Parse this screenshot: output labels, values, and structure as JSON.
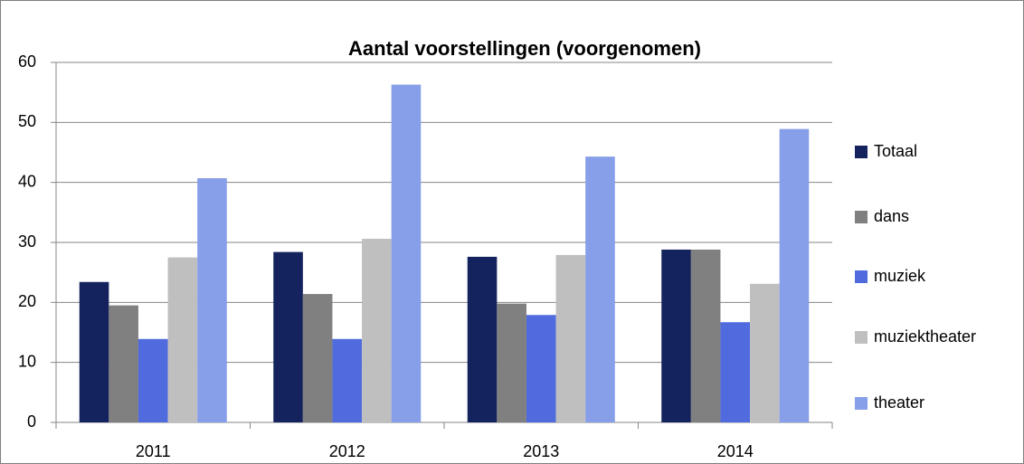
{
  "chart_data": {
    "type": "bar",
    "title": "Aantal voorstellingen (voorgenomen)",
    "categories": [
      "2011",
      "2012",
      "2013",
      "2014"
    ],
    "series": [
      {
        "name": "Totaal",
        "color": "#14235e",
        "values": [
          23.4,
          28.4,
          27.6,
          28.8
        ]
      },
      {
        "name": "dans",
        "color": "#808080",
        "values": [
          19.5,
          21.4,
          19.8,
          28.8
        ]
      },
      {
        "name": "muziek",
        "color": "#4f6bde",
        "values": [
          13.9,
          13.9,
          17.9,
          16.7
        ]
      },
      {
        "name": "muziektheater",
        "color": "#bfbfbf",
        "values": [
          27.5,
          30.6,
          27.9,
          23.1
        ]
      },
      {
        "name": "theater",
        "color": "#879ee8",
        "values": [
          40.7,
          56.3,
          44.3,
          48.9
        ]
      }
    ],
    "ylim": [
      0,
      60
    ],
    "yticks": [
      0,
      10,
      20,
      30,
      40,
      50,
      60
    ],
    "grid": true,
    "legend": "right"
  }
}
